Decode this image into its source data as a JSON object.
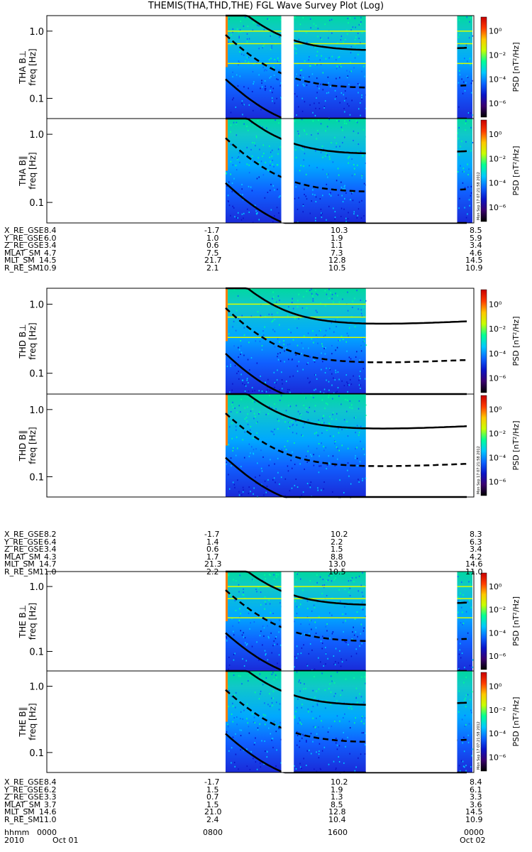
{
  "title": "THEMIS(THA,THD,THE) FGL Wave Survey Plot (Log)",
  "colorbar": {
    "label": "PSD [nT²/Hz]",
    "ticks": [
      "10⁰",
      "10⁻²",
      "10⁻⁴",
      "10⁻⁶"
    ],
    "stamp": "Mon Sep 17 07:21:58 2012",
    "colors": [
      "#000000",
      "#3a0070",
      "#0a14c8",
      "#0a64ff",
      "#00c8ff",
      "#00ff96",
      "#c8ff00",
      "#ffc800",
      "#ff3c00",
      "#c80000"
    ]
  },
  "chart_data": [
    {
      "type": "heatmap",
      "probe": "THA",
      "component": "B⊥",
      "ylabel_probe": "THA B⊥",
      "ylabel": "freq [Hz]",
      "yticks": [
        "1.0",
        "0.1"
      ],
      "ylim": [
        0.05,
        1.7
      ],
      "yscale": "log",
      "segments": [
        [
          0.605,
          0.762
        ],
        [
          0.797,
          1.0
        ],
        [
          1.257,
          1.304
        ]
      ],
      "gaps": [
        [
          0.762,
          0.797
        ],
        [
          1.0,
          1.257
        ]
      ],
      "bright_band": true
    },
    {
      "type": "heatmap",
      "probe": "THA",
      "component": "B∥",
      "ylabel_probe": "THA B∥",
      "ylabel": "freq [Hz]",
      "yticks": [
        "1.0",
        "0.1"
      ],
      "ylim": [
        0.05,
        1.7
      ],
      "yscale": "log",
      "segments": [
        [
          0.605,
          0.762
        ],
        [
          0.797,
          1.0
        ],
        [
          1.257,
          1.304
        ]
      ],
      "gaps": [
        [
          0.762,
          0.797
        ],
        [
          1.0,
          1.257
        ]
      ],
      "bright_band": false
    },
    {
      "type": "heatmap",
      "probe": "THD",
      "component": "B⊥",
      "ylabel_probe": "THD B⊥",
      "ylabel": "freq [Hz]",
      "yticks": [
        "1.0",
        "0.1"
      ],
      "ylim": [
        0.05,
        1.7
      ],
      "yscale": "log",
      "segments": [
        [
          0.605,
          1.0
        ]
      ],
      "gaps": [],
      "bright_band": true
    },
    {
      "type": "heatmap",
      "probe": "THD",
      "component": "B∥",
      "ylabel_probe": "THD B∥",
      "ylabel": "freq [Hz]",
      "yticks": [
        "1.0",
        "0.1"
      ],
      "ylim": [
        0.05,
        1.7
      ],
      "yscale": "log",
      "segments": [
        [
          0.605,
          1.0
        ]
      ],
      "gaps": [],
      "bright_band": false
    },
    {
      "type": "heatmap",
      "probe": "THE",
      "component": "B⊥",
      "ylabel_probe": "THE B⊥",
      "ylabel": "freq [Hz]",
      "yticks": [
        "1.0",
        "0.1"
      ],
      "ylim": [
        0.05,
        1.7
      ],
      "yscale": "log",
      "segments": [
        [
          0.605,
          0.762
        ],
        [
          0.797,
          1.0
        ],
        [
          1.257,
          1.304
        ]
      ],
      "gaps": [
        [
          0.762,
          0.797
        ],
        [
          1.0,
          1.257
        ]
      ],
      "bright_band": true
    },
    {
      "type": "heatmap",
      "probe": "THE",
      "component": "B∥",
      "ylabel_probe": "THE B∥",
      "ylabel": "freq [Hz]",
      "yticks": [
        "1.0",
        "0.1"
      ],
      "ylim": [
        0.05,
        1.7
      ],
      "yscale": "log",
      "segments": [
        [
          0.605,
          0.762
        ],
        [
          0.797,
          1.0
        ],
        [
          1.257,
          1.304
        ]
      ],
      "gaps": [
        [
          0.762,
          0.797
        ],
        [
          1.0,
          1.257
        ]
      ],
      "bright_band": false
    }
  ],
  "ephemeris": [
    {
      "probe": "THA",
      "rows": [
        {
          "label": "X_RE_GSE",
          "values": [
            "8.4",
            "-1.7",
            "10.3",
            "8.5"
          ]
        },
        {
          "label": "Y_RE_GSE",
          "values": [
            "6.0",
            "1.0",
            "1.9",
            "5.9"
          ]
        },
        {
          "label": "Z_RE_GSE",
          "values": [
            "3.4",
            "0.6",
            "1.1",
            "3.4"
          ]
        },
        {
          "label": "MLAT_SM",
          "values": [
            "4.7",
            "7.5",
            "7.3",
            "4.6"
          ]
        },
        {
          "label": "MLT_SM",
          "values": [
            "14.5",
            "21.7",
            "12.8",
            "14.5"
          ]
        },
        {
          "label": "R_RE_SM",
          "values": [
            "10.9",
            "2.1",
            "10.5",
            "10.9"
          ]
        }
      ]
    },
    {
      "probe": "THD",
      "rows": [
        {
          "label": "X_RE_GSE",
          "values": [
            "8.2",
            "-1.7",
            "10.2",
            "8.3"
          ]
        },
        {
          "label": "Y_RE_GSE",
          "values": [
            "6.4",
            "1.4",
            "2.2",
            "6.3"
          ]
        },
        {
          "label": "Z_RE_GSE",
          "values": [
            "3.4",
            "0.6",
            "1.5",
            "3.4"
          ]
        },
        {
          "label": "MLAT_SM",
          "values": [
            "4.3",
            "1.7",
            "8.8",
            "4.2"
          ]
        },
        {
          "label": "MLT_SM",
          "values": [
            "14.7",
            "21.3",
            "13.0",
            "14.6"
          ]
        },
        {
          "label": "R_RE_SM",
          "values": [
            "11.0",
            "2.2",
            "10.5",
            "11.0"
          ]
        }
      ]
    },
    {
      "probe": "THE",
      "rows": [
        {
          "label": "X_RE_GSE",
          "values": [
            "8.4",
            "-1.7",
            "10.2",
            "8.4"
          ]
        },
        {
          "label": "Y_RE_GSE",
          "values": [
            "6.2",
            "1.5",
            "1.9",
            "6.1"
          ]
        },
        {
          "label": "Z_RE_GSE",
          "values": [
            "3.3",
            "0.7",
            "1.3",
            "3.3"
          ]
        },
        {
          "label": "MLAT_SM",
          "values": [
            "3.7",
            "1.5",
            "8.5",
            "3.6"
          ]
        },
        {
          "label": "MLT_SM",
          "values": [
            "14.6",
            "21.0",
            "12.8",
            "14.5"
          ]
        },
        {
          "label": "R_RE_SM",
          "values": [
            "11.0",
            "2.4",
            "10.4",
            "10.9"
          ]
        }
      ]
    }
  ],
  "time_axis": {
    "hhmm_label": "hhmm",
    "hhmm": [
      "0000",
      "0800",
      "1600",
      "0000"
    ],
    "year": "2010",
    "dates": [
      "Oct 01",
      "Oct 02"
    ]
  }
}
